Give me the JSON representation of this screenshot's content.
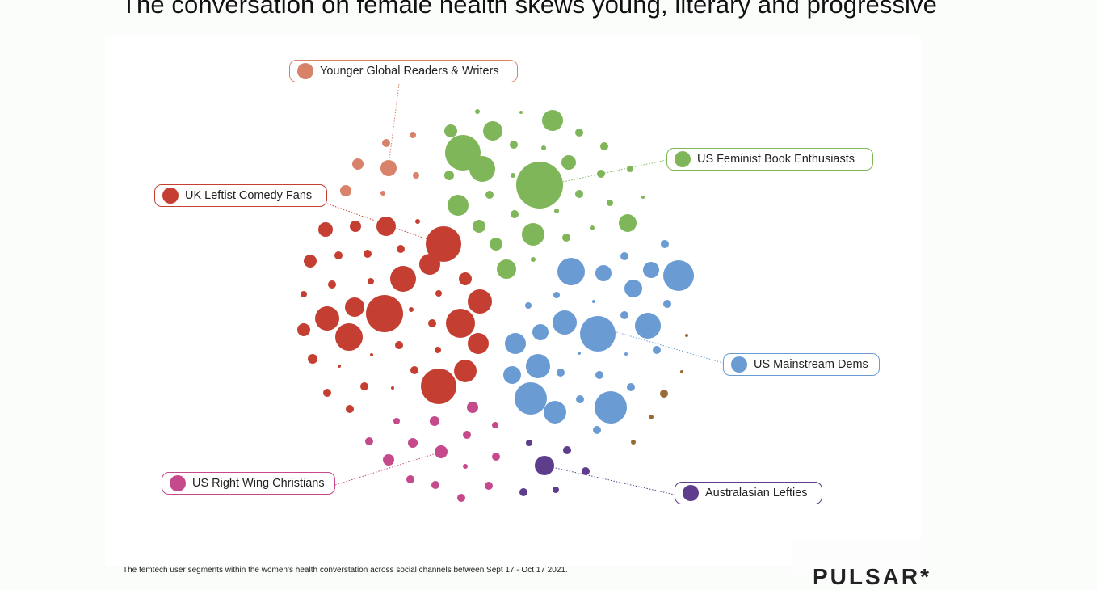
{
  "title": "The conversation on female health skews young, literary and progressive",
  "footer": "The femtech user segments within the women’s health converstation across social channels between Sept 17  - Oct 17 2021.",
  "logo": "PULSAR*",
  "segments": [
    {
      "id": "younger",
      "label": "Younger Global Readers & Writers",
      "color": "#d9826a"
    },
    {
      "id": "feminist",
      "label": "US Feminist Book Enthusiasts",
      "color": "#80b65a"
    },
    {
      "id": "uk",
      "label": "UK Leftist Comedy Fans",
      "color": "#c43f32"
    },
    {
      "id": "dems",
      "label": "US Mainstream Dems",
      "color": "#6b9bd3"
    },
    {
      "id": "christians",
      "label": "US Right Wing Christians",
      "color": "#c44a8c"
    },
    {
      "id": "aus",
      "label": "Australasian Lefties",
      "color": "#5e3e8c"
    }
  ],
  "other_color": "#9a6a35"
}
